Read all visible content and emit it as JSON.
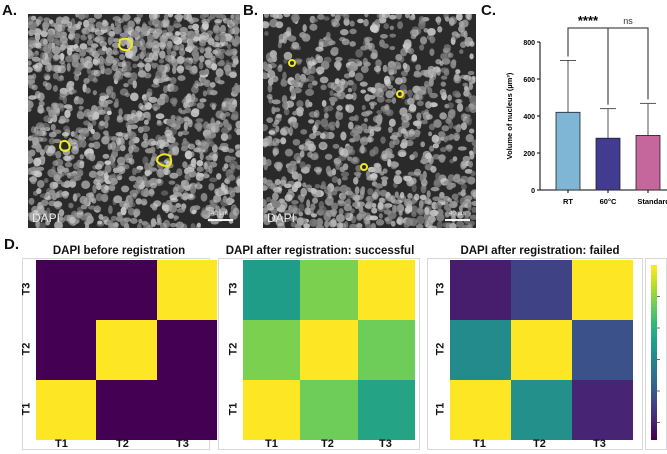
{
  "labels": {
    "a": "A.",
    "b": "B.",
    "c": "C.",
    "d": "D."
  },
  "micrographs": [
    {
      "stain": "DAPI",
      "scale": "40 µm"
    },
    {
      "stain": "DAPI",
      "scale": "40 µm"
    }
  ],
  "chart_data": [
    {
      "type": "bar",
      "categories": [
        "RT",
        "60°C",
        "Standard IF"
      ],
      "values": [
        420,
        280,
        295
      ],
      "error_upper": [
        700,
        440,
        468
      ],
      "colors": [
        "#7fb6d6",
        "#413c8f",
        "#c5669d"
      ],
      "ylabel": "Volume of nucleus (µm³)",
      "ylim": [
        0,
        800
      ],
      "yticks": [
        "0",
        "200",
        "400",
        "600",
        "800"
      ],
      "annotations": [
        {
          "text": "****",
          "from": "RT",
          "to": "60°C"
        },
        {
          "text": "ns",
          "from": "60°C",
          "to": "Standard IF"
        }
      ]
    },
    {
      "type": "heatmap",
      "title": "DAPI before registration",
      "x": [
        "T1",
        "T2",
        "T3"
      ],
      "y": [
        "T3",
        "T2",
        "T1"
      ],
      "values": [
        [
          0.0,
          0.0,
          1.0
        ],
        [
          0.0,
          1.0,
          0.0
        ],
        [
          1.0,
          0.0,
          0.0
        ]
      ]
    },
    {
      "type": "heatmap",
      "title": "DAPI after registration: successful",
      "x": [
        "T1",
        "T2",
        "T3"
      ],
      "y": [
        "T3",
        "T2",
        "T1"
      ],
      "values": [
        [
          0.55,
          0.8,
          1.0
        ],
        [
          0.8,
          1.0,
          0.78
        ],
        [
          1.0,
          0.78,
          0.58
        ]
      ]
    },
    {
      "type": "heatmap",
      "title": "DAPI after registration: failed",
      "x": [
        "T1",
        "T2",
        "T3"
      ],
      "y": [
        "T3",
        "T2",
        "T1"
      ],
      "values": [
        [
          0.08,
          0.2,
          1.0
        ],
        [
          0.48,
          1.0,
          0.25
        ],
        [
          1.0,
          0.5,
          0.1
        ]
      ]
    }
  ],
  "colorbar": {
    "colormap": "viridis",
    "range": [
      0,
      1
    ]
  }
}
